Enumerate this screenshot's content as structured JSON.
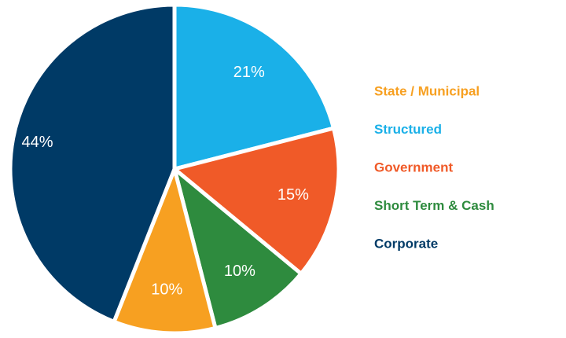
{
  "chart_data": {
    "type": "pie",
    "categories": [
      "Structured",
      "Government",
      "Short Term & Cash",
      "State / Municipal",
      "Corporate"
    ],
    "values": [
      21,
      15,
      10,
      10,
      44
    ],
    "value_labels": [
      "21%",
      "15%",
      "10%",
      "10%",
      "44%"
    ],
    "colors": [
      "#1ab0e8",
      "#f05a28",
      "#2e8b3e",
      "#f7a021",
      "#003a66"
    ],
    "legend": "right"
  }
}
